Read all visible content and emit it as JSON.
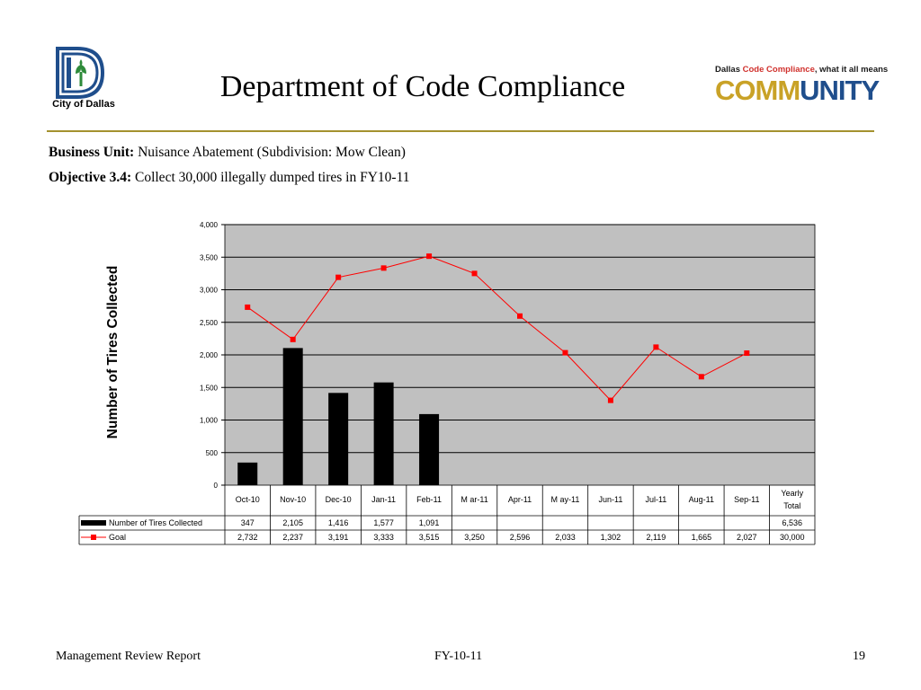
{
  "header": {
    "city_logo_text": "City of Dallas",
    "title": "Department of Code Compliance",
    "community_tagline_prefix": "Dallas ",
    "community_tagline_highlight": "Code Compliance",
    "community_tagline_suffix": ", what it all means",
    "community_word_a": "COMM",
    "community_word_b": "UNITY",
    "colors": {
      "rule": "#a4922f",
      "comm": "#c9a227",
      "unity": "#1f4e8c",
      "tagline_highlight": "#d0312d"
    }
  },
  "info": {
    "business_unit_label": "Business Unit:",
    "business_unit_value": "Nuisance Abatement (Subdivision: Mow Clean)",
    "objective_label": "Objective 3.4:",
    "objective_value": "Collect 30,000 illegally dumped tires in FY10-11"
  },
  "chart_data": {
    "type": "bar",
    "ylabel": "Number of Tires Collected",
    "ylim": [
      0,
      4000
    ],
    "yticks": [
      "0",
      "500",
      "1,000",
      "1,500",
      "2,000",
      "2,500",
      "3,000",
      "3,500",
      "4,000"
    ],
    "ytick_values": [
      0,
      500,
      1000,
      1500,
      2000,
      2500,
      3000,
      3500,
      4000
    ],
    "categories": [
      "Oct-10",
      "Nov-10",
      "Dec-10",
      "Jan-11",
      "Feb-11",
      "M ar-11",
      "Apr-11",
      "M ay-11",
      "Jun-11",
      "Jul-11",
      "Aug-11",
      "Sep-11"
    ],
    "total_header_line1": "Yearly",
    "total_header_line2": "Total",
    "grid": true,
    "plot_background": "#c0c0c0",
    "series": [
      {
        "name": "Number of Tires Collected",
        "type": "bar",
        "color": "#000000",
        "values": [
          347,
          2105,
          1416,
          1577,
          1091,
          null,
          null,
          null,
          null,
          null,
          null,
          null
        ],
        "labels": [
          "347",
          "2,105",
          "1,416",
          "1,577",
          "1,091",
          "",
          "",
          "",
          "",
          "",
          "",
          ""
        ],
        "total": "6,536"
      },
      {
        "name": "Goal",
        "type": "line",
        "color": "#ff0000",
        "values": [
          2732,
          2237,
          3191,
          3333,
          3515,
          3250,
          2596,
          2033,
          1302,
          2119,
          1665,
          2027
        ],
        "labels": [
          "2,732",
          "2,237",
          "3,191",
          "3,333",
          "3,515",
          "3,250",
          "2,596",
          "2,033",
          "1,302",
          "2,119",
          "1,665",
          "2,027"
        ],
        "total": "30,000"
      }
    ]
  },
  "footer": {
    "left": "Management Review Report",
    "center": "FY-10-11",
    "page": "19"
  }
}
